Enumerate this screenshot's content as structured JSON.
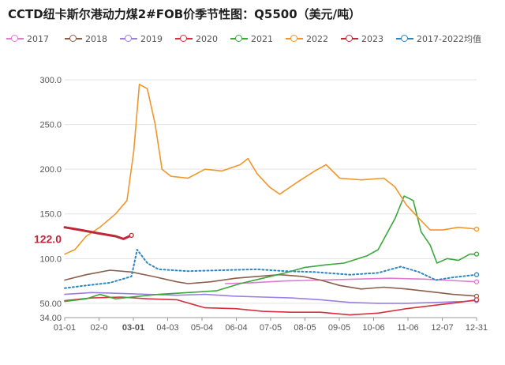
{
  "title": "CCTD纽卡斯尔港动力煤2#FOB价季节性图：Q5500（美元/吨）",
  "colors": {
    "2017": "#e07bd0",
    "2018": "#8b5e4b",
    "2019": "#9b7fe0",
    "2020": "#d6303e",
    "2021": "#3aa83a",
    "2022": "#f0962a",
    "2023": "#c0283a",
    "avg": "#2e86c1"
  },
  "legend": [
    {
      "key": "2017",
      "label": "2017",
      "color": "#e07bd0"
    },
    {
      "key": "2018",
      "label": "2018",
      "color": "#8b5e4b"
    },
    {
      "key": "2019",
      "label": "2019",
      "color": "#9b7fe0"
    },
    {
      "key": "2020",
      "label": "2020",
      "color": "#d6303e"
    },
    {
      "key": "2021",
      "label": "2021",
      "color": "#3aa83a"
    },
    {
      "key": "2022",
      "label": "2022",
      "color": "#f0962a"
    },
    {
      "key": "2023",
      "label": "2023",
      "color": "#c0283a"
    },
    {
      "key": "avg",
      "label": "2017-2022均值",
      "color": "#2e86c1"
    }
  ],
  "chart_data": {
    "type": "line",
    "title": "CCTD纽卡斯尔港动力煤2#FOB价季节性图：Q5500（美元/吨）",
    "x_axis": {
      "type": "day_of_year",
      "range": [
        "01-01",
        "12-31"
      ],
      "tick_labels": [
        "01-01",
        "02-0",
        "03-01",
        "04-03",
        "05-04",
        "06-04",
        "07-05",
        "08-05",
        "09-05",
        "10-06",
        "11-06",
        "12-07",
        "12-31"
      ],
      "highlighted_tick": "03-01"
    },
    "y_axis": {
      "range": [
        34,
        300
      ],
      "tick_labels": [
        "34.00",
        "50.00",
        "100.0",
        "150.0",
        "200.0",
        "250.0",
        "300.0"
      ],
      "grid": true
    },
    "marker_label": "122.0",
    "series": [
      {
        "name": "2017",
        "key": "2017",
        "dashed": false,
        "points": [
          [
            "05-23",
            72
          ],
          [
            "06-15",
            73
          ],
          [
            "07-15",
            75
          ],
          [
            "08-15",
            76
          ],
          [
            "09-15",
            77
          ],
          [
            "10-15",
            78
          ],
          [
            "11-15",
            77
          ],
          [
            "12-01",
            76
          ],
          [
            "12-31",
            74
          ]
        ]
      },
      {
        "name": "2018",
        "key": "2018",
        "dashed": false,
        "points": [
          [
            "01-01",
            76
          ],
          [
            "01-20",
            82
          ],
          [
            "02-10",
            87
          ],
          [
            "03-01",
            85
          ],
          [
            "03-20",
            80
          ],
          [
            "04-10",
            74
          ],
          [
            "04-20",
            72
          ],
          [
            "05-10",
            74
          ],
          [
            "06-01",
            78
          ],
          [
            "06-20",
            80
          ],
          [
            "07-10",
            82
          ],
          [
            "07-30",
            80
          ],
          [
            "08-15",
            76
          ],
          [
            "09-01",
            70
          ],
          [
            "09-20",
            66
          ],
          [
            "10-10",
            68
          ],
          [
            "10-30",
            66
          ],
          [
            "11-20",
            63
          ],
          [
            "12-10",
            60
          ],
          [
            "12-31",
            58
          ]
        ]
      },
      {
        "name": "2019",
        "key": "2019",
        "dashed": false,
        "points": [
          [
            "01-01",
            60
          ],
          [
            "01-25",
            62
          ],
          [
            "02-20",
            61
          ],
          [
            "03-15",
            60
          ],
          [
            "04-10",
            59
          ],
          [
            "05-05",
            60
          ],
          [
            "05-30",
            58
          ],
          [
            "06-25",
            57
          ],
          [
            "07-20",
            56
          ],
          [
            "08-15",
            54
          ],
          [
            "09-10",
            51
          ],
          [
            "10-05",
            50
          ],
          [
            "10-30",
            50
          ],
          [
            "11-25",
            51
          ],
          [
            "12-20",
            52
          ],
          [
            "12-31",
            53
          ]
        ]
      },
      {
        "name": "2020",
        "key": "2020",
        "dashed": false,
        "points": [
          [
            "01-01",
            53
          ],
          [
            "01-25",
            56
          ],
          [
            "02-20",
            57
          ],
          [
            "03-15",
            55
          ],
          [
            "04-10",
            54
          ],
          [
            "05-05",
            45
          ],
          [
            "06-01",
            44
          ],
          [
            "06-25",
            41
          ],
          [
            "07-20",
            40
          ],
          [
            "08-15",
            40
          ],
          [
            "09-10",
            37
          ],
          [
            "10-05",
            39
          ],
          [
            "10-30",
            44
          ],
          [
            "11-25",
            48
          ],
          [
            "12-15",
            51
          ],
          [
            "12-31",
            54
          ]
        ]
      },
      {
        "name": "2021",
        "key": "2021",
        "dashed": false,
        "points": [
          [
            "01-01",
            52
          ],
          [
            "01-20",
            55
          ],
          [
            "02-01",
            60
          ],
          [
            "02-15",
            55
          ],
          [
            "03-01",
            57
          ],
          [
            "03-25",
            60
          ],
          [
            "04-20",
            62
          ],
          [
            "05-15",
            64
          ],
          [
            "06-05",
            72
          ],
          [
            "06-25",
            78
          ],
          [
            "07-15",
            84
          ],
          [
            "08-01",
            90
          ],
          [
            "08-20",
            93
          ],
          [
            "09-05",
            95
          ],
          [
            "09-25",
            103
          ],
          [
            "10-05",
            110
          ],
          [
            "10-20",
            145
          ],
          [
            "10-28",
            170
          ],
          [
            "11-05",
            165
          ],
          [
            "11-12",
            130
          ],
          [
            "11-20",
            115
          ],
          [
            "11-26",
            95
          ],
          [
            "12-05",
            100
          ],
          [
            "12-15",
            98
          ],
          [
            "12-25",
            105
          ],
          [
            "12-31",
            105
          ]
        ]
      },
      {
        "name": "2022",
        "key": "2022",
        "dashed": false,
        "points": [
          [
            "01-01",
            105
          ],
          [
            "01-10",
            110
          ],
          [
            "01-20",
            125
          ],
          [
            "02-01",
            135
          ],
          [
            "02-15",
            150
          ],
          [
            "02-25",
            165
          ],
          [
            "03-03",
            220
          ],
          [
            "03-08",
            295
          ],
          [
            "03-15",
            290
          ],
          [
            "03-22",
            250
          ],
          [
            "03-28",
            200
          ],
          [
            "04-05",
            192
          ],
          [
            "04-20",
            190
          ],
          [
            "05-05",
            200
          ],
          [
            "05-20",
            198
          ],
          [
            "06-05",
            205
          ],
          [
            "06-12",
            212
          ],
          [
            "06-20",
            195
          ],
          [
            "07-01",
            180
          ],
          [
            "07-10",
            172
          ],
          [
            "07-25",
            185
          ],
          [
            "08-10",
            198
          ],
          [
            "08-20",
            205
          ],
          [
            "09-01",
            190
          ],
          [
            "09-20",
            188
          ],
          [
            "10-10",
            190
          ],
          [
            "10-20",
            180
          ],
          [
            "10-30",
            160
          ],
          [
            "11-10",
            145
          ],
          [
            "11-20",
            132
          ],
          [
            "12-01",
            132
          ],
          [
            "12-15",
            135
          ],
          [
            "12-31",
            133
          ]
        ]
      },
      {
        "name": "2023",
        "key": "2023",
        "dashed": false,
        "points": [
          [
            "01-01",
            135
          ],
          [
            "01-15",
            132
          ],
          [
            "02-01",
            128
          ],
          [
            "02-15",
            125
          ],
          [
            "02-22",
            122
          ],
          [
            "03-01",
            126
          ]
        ]
      },
      {
        "name": "2017-2022均值",
        "key": "avg",
        "dashed": true,
        "points": [
          [
            "01-01",
            67
          ],
          [
            "01-20",
            70
          ],
          [
            "02-10",
            73
          ],
          [
            "03-01",
            80
          ],
          [
            "03-06",
            110
          ],
          [
            "03-15",
            95
          ],
          [
            "03-25",
            88
          ],
          [
            "04-20",
            86
          ],
          [
            "05-20",
            87
          ],
          [
            "06-20",
            88
          ],
          [
            "07-15",
            86
          ],
          [
            "08-10",
            85
          ],
          [
            "09-10",
            82
          ],
          [
            "10-05",
            84
          ],
          [
            "10-25",
            91
          ],
          [
            "11-10",
            85
          ],
          [
            "11-25",
            76
          ],
          [
            "12-10",
            79
          ],
          [
            "12-31",
            82
          ]
        ]
      }
    ]
  }
}
